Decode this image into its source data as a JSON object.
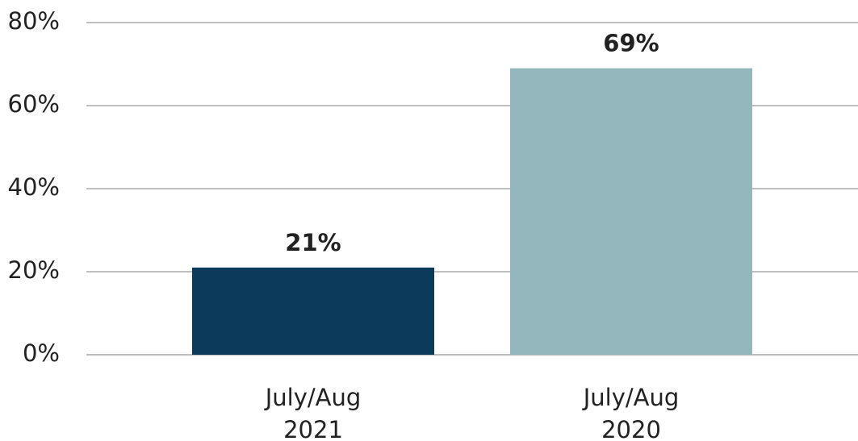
{
  "chart_data": {
    "type": "bar",
    "categories": [
      [
        "July/Aug",
        "2021"
      ],
      [
        "July/Aug",
        "2020"
      ]
    ],
    "values": [
      21,
      69
    ],
    "value_labels": [
      "21%",
      "69%"
    ],
    "colors": [
      "#0b3a5b",
      "#94b6bd"
    ],
    "ylim": [
      0,
      80
    ],
    "yticks": [
      {
        "value": 0,
        "label": "0%"
      },
      {
        "value": 20,
        "label": "20%"
      },
      {
        "value": 40,
        "label": "40%"
      },
      {
        "value": 60,
        "label": "60%"
      },
      {
        "value": 80,
        "label": "80%"
      }
    ],
    "grid": true
  }
}
